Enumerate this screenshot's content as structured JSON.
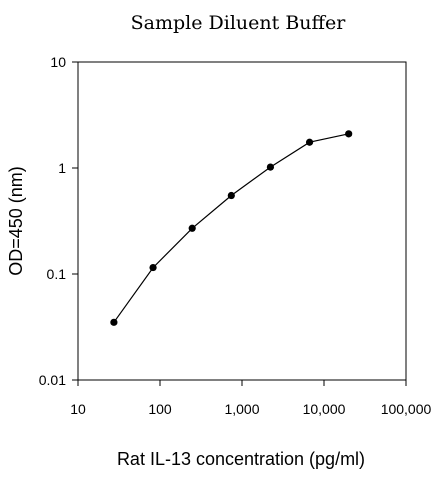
{
  "chart_data": {
    "type": "line",
    "title": "Sample Diluent Buffer",
    "xlabel": "Rat IL-13 concentration (pg/ml)",
    "ylabel": "OD=450 (nm)",
    "xscale": "log",
    "yscale": "log",
    "xlim": [
      10,
      100000
    ],
    "ylim": [
      0.01,
      10
    ],
    "x_ticks": [
      10,
      100,
      1000,
      10000,
      100000
    ],
    "x_tick_labels": [
      "10",
      "100",
      "1,000",
      "10,000",
      "100,000"
    ],
    "y_ticks": [
      0.01,
      0.1,
      1,
      10
    ],
    "y_tick_labels": [
      "0.01",
      "0.1",
      "1",
      "10"
    ],
    "grid": false,
    "legend": "none",
    "series": [
      {
        "x": [
          27.4,
          82.3,
          247,
          741,
          2222,
          6667,
          20000
        ],
        "y": [
          0.035,
          0.115,
          0.27,
          0.55,
          1.02,
          1.75,
          2.1
        ]
      }
    ],
    "colors": {
      "line": "#000000",
      "marker": "#000000"
    }
  }
}
